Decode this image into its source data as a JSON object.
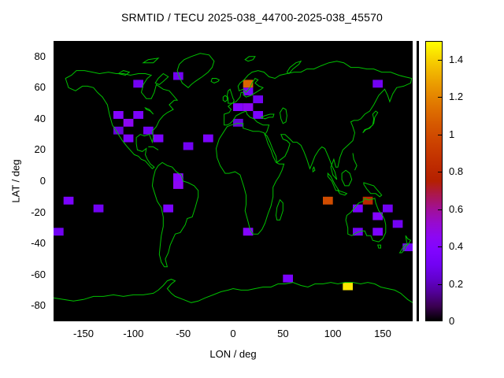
{
  "title": "SRMTID / TECU 2025-038_44700-2025-038_45570",
  "colors": {
    "background": "#ffffff",
    "plot_background": "#000000",
    "coastline": "#00c000",
    "text": "#000000"
  },
  "axes": {
    "xlabel": "LON / deg",
    "ylabel": "LAT / deg",
    "x_ticks": [
      -150,
      -100,
      -50,
      0,
      50,
      100,
      150
    ],
    "y_ticks": [
      -80,
      -60,
      -40,
      -20,
      0,
      20,
      40,
      60,
      80
    ],
    "x_range": [
      -180,
      180
    ],
    "y_range": [
      -90,
      90
    ]
  },
  "colorbar": {
    "min": 0,
    "max": 1.5,
    "ticks": [
      0,
      0.2,
      0.4,
      0.6,
      0.8,
      1,
      1.2,
      1.4
    ],
    "tick_labels": [
      "0",
      "0.2",
      "0.4",
      "0.6",
      "0.8",
      "1",
      "1.2",
      "1.4"
    ]
  },
  "chart_data": {
    "type": "heatmap",
    "title": "SRMTID / TECU 2025-038_44700-2025-038_45570",
    "xlabel": "LON / deg",
    "ylabel": "LAT / deg",
    "xlim": [
      -180,
      180
    ],
    "ylim": [
      -90,
      90
    ],
    "units": "TECU",
    "colormap": "gnuplot black-violet-red-yellow (rgbformulae 7,5,15)",
    "cbrange": [
      0,
      1.5
    ],
    "grid": false,
    "legend_position": "right-colorbar",
    "cell_size": {
      "lon_deg": 10,
      "lat_deg": 5
    },
    "cells": [
      {
        "lon": -165,
        "lat": -12.5,
        "value": 0.35
      },
      {
        "lon": -135,
        "lat": -17.5,
        "value": 0.3
      },
      {
        "lon": -175,
        "lat": -32.5,
        "value": 0.3
      },
      {
        "lon": -95,
        "lat": 62.5,
        "value": 0.3
      },
      {
        "lon": -55,
        "lat": 67.5,
        "value": 0.3
      },
      {
        "lon": -115,
        "lat": 42.5,
        "value": 0.4
      },
      {
        "lon": -105,
        "lat": 37.5,
        "value": 0.45
      },
      {
        "lon": -95,
        "lat": 42.5,
        "value": 0.35
      },
      {
        "lon": -115,
        "lat": 32.5,
        "value": 0.25
      },
      {
        "lon": -105,
        "lat": 27.5,
        "value": 0.35
      },
      {
        "lon": -85,
        "lat": 32.5,
        "value": 0.3
      },
      {
        "lon": -75,
        "lat": 27.5,
        "value": 0.35
      },
      {
        "lon": -45,
        "lat": 22.5,
        "value": 0.3
      },
      {
        "lon": -25,
        "lat": 27.5,
        "value": 0.35
      },
      {
        "lon": 15,
        "lat": 62.5,
        "value": 1.1
      },
      {
        "lon": 15,
        "lat": 57.5,
        "value": 0.35
      },
      {
        "lon": 25,
        "lat": 52.5,
        "value": 0.3
      },
      {
        "lon": 5,
        "lat": 47.5,
        "value": 0.4
      },
      {
        "lon": 15,
        "lat": 47.5,
        "value": 0.45
      },
      {
        "lon": 25,
        "lat": 42.5,
        "value": 0.35
      },
      {
        "lon": 5,
        "lat": 37.5,
        "value": 0.25
      },
      {
        "lon": -55,
        "lat": 2.5,
        "value": 0.4
      },
      {
        "lon": -55,
        "lat": -2.5,
        "value": 0.45
      },
      {
        "lon": -65,
        "lat": -17.5,
        "value": 0.35
      },
      {
        "lon": 15,
        "lat": -32.5,
        "value": 0.4
      },
      {
        "lon": 95,
        "lat": -12.5,
        "value": 1.0
      },
      {
        "lon": 135,
        "lat": -12.5,
        "value": 0.8
      },
      {
        "lon": 125,
        "lat": -17.5,
        "value": 0.35
      },
      {
        "lon": 145,
        "lat": -22.5,
        "value": 0.4
      },
      {
        "lon": 155,
        "lat": -17.5,
        "value": 0.3
      },
      {
        "lon": 125,
        "lat": -32.5,
        "value": 0.3
      },
      {
        "lon": 145,
        "lat": -32.5,
        "value": 0.35
      },
      {
        "lon": 165,
        "lat": -27.5,
        "value": 0.3
      },
      {
        "lon": 175,
        "lat": -42.5,
        "value": 0.3
      },
      {
        "lon": 145,
        "lat": 62.5,
        "value": 0.3
      },
      {
        "lon": 55,
        "lat": -62.5,
        "value": 0.35
      },
      {
        "lon": 115,
        "lat": -67.5,
        "value": 1.45
      }
    ]
  }
}
